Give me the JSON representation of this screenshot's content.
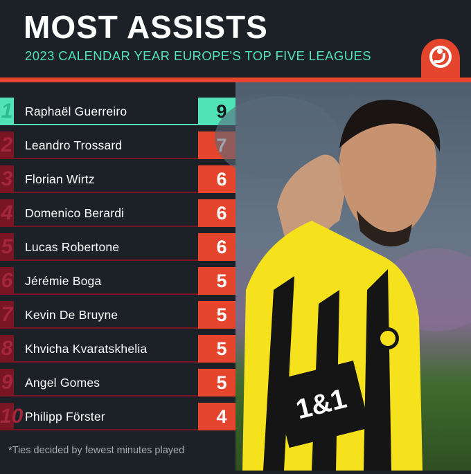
{
  "header": {
    "title": "MOST ASSISTS",
    "subtitle": "2023 CALENDAR YEAR EUROPE'S TOP FIVE LEAGUES"
  },
  "logo": {
    "icon": "yin-swirl-logo-icon"
  },
  "players": [
    {
      "rank": "1",
      "name": "Raphaël Guerreiro",
      "assists": "9"
    },
    {
      "rank": "2",
      "name": "Leandro Trossard",
      "assists": "7"
    },
    {
      "rank": "3",
      "name": "Florian Wirtz",
      "assists": "6"
    },
    {
      "rank": "4",
      "name": "Domenico Berardi",
      "assists": "6"
    },
    {
      "rank": "5",
      "name": "Lucas Robertone",
      "assists": "6"
    },
    {
      "rank": "6",
      "name": "Jérémie Boga",
      "assists": "5"
    },
    {
      "rank": "7",
      "name": "Kevin De Bruyne",
      "assists": "5"
    },
    {
      "rank": "8",
      "name": "Khvicha Kvaratskhelia",
      "assists": "5"
    },
    {
      "rank": "9",
      "name": "Angel Gomes",
      "assists": "5"
    },
    {
      "rank": "10",
      "name": "Philipp Förster",
      "assists": "4"
    }
  ],
  "footnote": "*Ties decided by fewest minutes played",
  "photo": {
    "shirt_text": "1&1"
  },
  "colors": {
    "background": "#1c2127",
    "accent_red": "#e5452c",
    "accent_teal": "#4fe3b6",
    "rank_dark_red": "#7a1523",
    "shirt_yellow": "#f5e11c"
  }
}
